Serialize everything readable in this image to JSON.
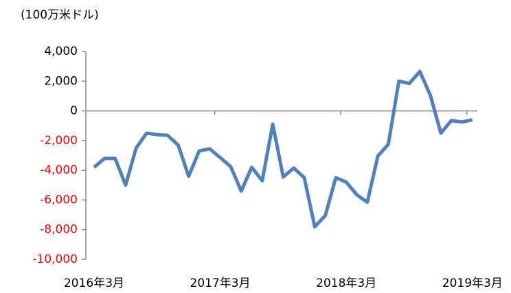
{
  "chart_data": {
    "type": "line",
    "y_label": "(100万米ドル)",
    "categories": [
      "2016年3月",
      null,
      null,
      null,
      null,
      null,
      null,
      null,
      null,
      null,
      null,
      null,
      "2017年3月",
      null,
      null,
      null,
      null,
      null,
      null,
      null,
      null,
      null,
      null,
      null,
      "2018年3月",
      null,
      null,
      null,
      null,
      null,
      null,
      null,
      null,
      null,
      null,
      null,
      "2019年3月"
    ],
    "series": [
      {
        "name": null,
        "color": "#4f81bd",
        "values": [
          -3800,
          -3200,
          -3200,
          -5000,
          -2500,
          -1500,
          -1600,
          -1650,
          -2300,
          -4400,
          -2700,
          -2550,
          -3150,
          -3750,
          -5400,
          -3800,
          -4700,
          -900,
          -4450,
          -3850,
          -4500,
          -7800,
          -7050,
          -4500,
          -4800,
          -5650,
          -6150,
          -3050,
          -2250,
          2000,
          1850,
          2650,
          1050,
          -1500,
          -650,
          -750,
          -600
        ]
      }
    ],
    "ylim": [
      -10000,
      4000
    ],
    "yticks": [
      {
        "value": -10000,
        "label": "-10,000"
      },
      {
        "value": -8000,
        "label": "-8,000"
      },
      {
        "value": -6000,
        "label": "-6,000"
      },
      {
        "value": -4000,
        "label": "-4,000"
      },
      {
        "value": -2000,
        "label": "-2,000"
      },
      0,
      {
        "value": 2000,
        "label": "2,000"
      },
      {
        "value": 4000,
        "label": "4,000"
      }
    ],
    "negative_tick_color": "#ff0000",
    "grid": false
  }
}
